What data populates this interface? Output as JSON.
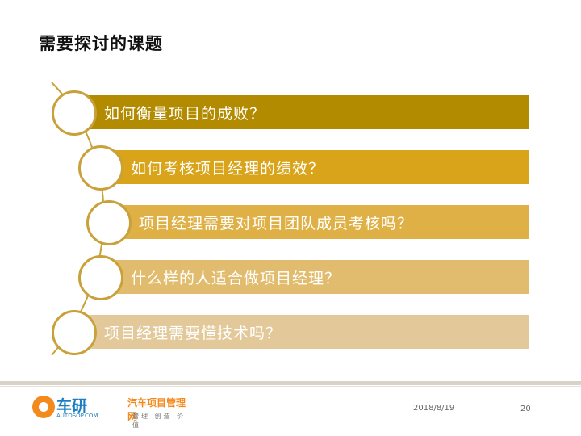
{
  "title": "需要探讨的课题",
  "items": [
    {
      "text": "如何衡量项目的成败？",
      "color": "#b38b00"
    },
    {
      "text": "如何考核项目经理的绩效？",
      "color": "#d9a41a"
    },
    {
      "text": "项目经理需要对项目团队成员考核吗？",
      "color": "#dfb045"
    },
    {
      "text": "什么样的人适合做项目经理？",
      "color": "#e2bc6e"
    },
    {
      "text": "项目经理需要懂技术吗？",
      "color": "#e3c99a"
    }
  ],
  "footer": {
    "logo_main": "车研",
    "logo_sub": "AUTOSOP.COM",
    "logo_right": "汽车项目管理网",
    "logo_right_sub": "管理 创造 价值",
    "date": "2018/8/19",
    "page": "20"
  },
  "colors": {
    "curve": "#c9a13a",
    "circle_border": "#c9a13a"
  }
}
